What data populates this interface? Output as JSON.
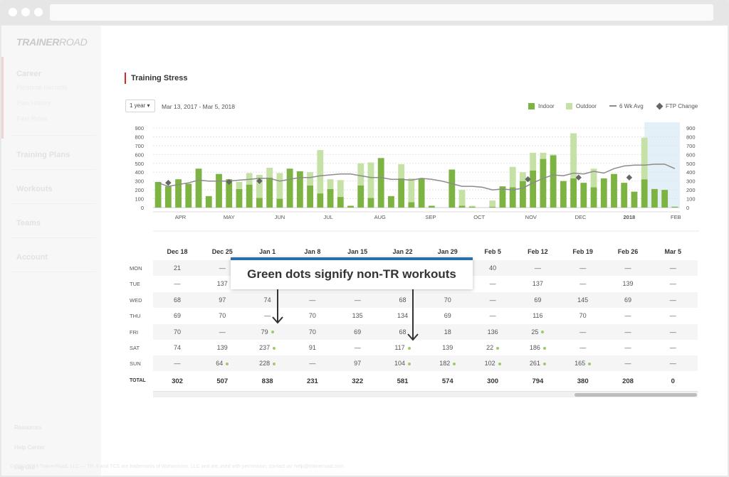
{
  "app": {
    "logo_bold": "TRAINER",
    "logo_light": "ROAD",
    "copyright": "© 2011-2018 TrainerRoad, LLC — TR, if and TCS are trademarks of Wahoo/com, LLC and are used with permission; contact us: help@trainerroad.com"
  },
  "sidebar": {
    "sections": [
      {
        "label": "Career",
        "items": [
          "Personal Records",
          "Plan History",
          "Past Rides"
        ]
      },
      {
        "label": "Training Plans",
        "items": []
      },
      {
        "label": "Workouts",
        "items": []
      },
      {
        "label": "Teams",
        "items": []
      },
      {
        "label": "Account",
        "items": []
      }
    ],
    "footer": [
      "Resources",
      "Help Center",
      "Log Out"
    ]
  },
  "page": {
    "title": "Training Stress",
    "range_select": "1 year",
    "date_range": "Mar 13, 2017 - Mar 5, 2018"
  },
  "legend": {
    "indoor": "Indoor",
    "outdoor": "Outdoor",
    "avg": "6 Wk Avg",
    "ftp": "FTP Change"
  },
  "colors": {
    "indoor": "#7cb342",
    "outdoor": "#c5e1a5",
    "avg_line": "#8c8c8c",
    "ftp_marker": "#666666",
    "highlight": "#e3f0f8",
    "accent": "#d62a2a",
    "tooltip_border": "#2a6fa8",
    "nontr_dot": "#9ccc65"
  },
  "chart_data": {
    "type": "bar",
    "y_ticks": [
      "0",
      "100",
      "200",
      "300",
      "400",
      "500",
      "600",
      "700",
      "800",
      "900"
    ],
    "ylim": [
      0,
      900
    ],
    "x_ticks": [
      "APR",
      "MAY",
      "JUN",
      "JUL",
      "AUG",
      "SEP",
      "OCT",
      "NOV",
      "DEC",
      "2018",
      "FEB"
    ],
    "x_tick_week": [
      2.7,
      7.5,
      12.5,
      17.3,
      22.4,
      27.4,
      32.2,
      37.3,
      42.2,
      47,
      51.6
    ],
    "series": [
      {
        "name": "Indoor",
        "values": [
          290,
          240,
          320,
          270,
          440,
          130,
          380,
          320,
          210,
          260,
          110,
          340,
          100,
          440,
          410,
          250,
          160,
          210,
          120,
          20,
          250,
          110,
          560,
          130,
          330,
          60,
          330,
          20,
          0,
          430,
          20,
          10,
          0,
          10,
          240,
          230,
          300,
          420,
          550,
          590,
          300,
          330,
          280,
          230,
          330,
          380,
          280,
          180,
          320,
          210,
          200,
          10
        ]
      },
      {
        "name": "Outdoor",
        "values": [
          0,
          0,
          0,
          0,
          0,
          0,
          0,
          0,
          80,
          130,
          260,
          110,
          290,
          0,
          0,
          150,
          490,
          110,
          190,
          0,
          250,
          400,
          0,
          0,
          160,
          270,
          0,
          0,
          0,
          0,
          180,
          10,
          0,
          70,
          0,
          230,
          100,
          200,
          70,
          10,
          0,
          510,
          0,
          210,
          0,
          0,
          0,
          0,
          470,
          0,
          0,
          0
        ]
      },
      {
        "name": "6 Wk Avg",
        "values": [
          280,
          240,
          260,
          280,
          310,
          300,
          300,
          300,
          310,
          320,
          330,
          330,
          300,
          320,
          340,
          340,
          360,
          370,
          380,
          380,
          360,
          340,
          340,
          320,
          320,
          310,
          330,
          320,
          300,
          270,
          240,
          240,
          230,
          200,
          210,
          200,
          220,
          280,
          330,
          370,
          360,
          390,
          380,
          410,
          390,
          440,
          470,
          480,
          480,
          490,
          490,
          440
        ]
      }
    ],
    "ftp_change_weeks": [
      1,
      7,
      10,
      36.5,
      41.5,
      46.5
    ],
    "ftp_change_values": [
      280,
      290,
      300,
      320,
      340,
      340
    ],
    "highlight_weeks": [
      48.5,
      62
    ]
  },
  "table": {
    "columns": [
      "Dec 18",
      "Dec 25",
      "Jan 1",
      "Jan 8",
      "Jan 15",
      "Jan 22",
      "Jan 29",
      "Feb 5",
      "Feb 12",
      "Feb 19",
      "Feb 26",
      "Mar 5"
    ],
    "rows": [
      {
        "label": "MON",
        "cells": [
          "21",
          "—",
          "",
          "",
          "",
          "",
          "",
          "40",
          "—",
          "—",
          "—",
          "—"
        ],
        "dots": []
      },
      {
        "label": "TUE",
        "cells": [
          "—",
          "137",
          "",
          "",
          "",
          "",
          "",
          "—",
          "137",
          "—",
          "139",
          "—"
        ],
        "dots": []
      },
      {
        "label": "WED",
        "cells": [
          "68",
          "97",
          "74",
          "—",
          "—",
          "68",
          "70",
          "—",
          "69",
          "145",
          "69",
          "—"
        ],
        "dots": []
      },
      {
        "label": "THU",
        "cells": [
          "69",
          "70",
          "—",
          "70",
          "135",
          "134",
          "69",
          "—",
          "116",
          "70",
          "—",
          "—"
        ],
        "dots": []
      },
      {
        "label": "FRI",
        "cells": [
          "70",
          "—",
          "79",
          "70",
          "69",
          "68",
          "18",
          "136",
          "25",
          "—",
          "—",
          "—"
        ],
        "dots": [
          2,
          8
        ]
      },
      {
        "label": "SAT",
        "cells": [
          "74",
          "139",
          "237",
          "91",
          "—",
          "117",
          "139",
          "22",
          "186",
          "—",
          "—",
          "—"
        ],
        "dots": [
          2,
          5,
          7,
          8
        ]
      },
      {
        "label": "SUN",
        "cells": [
          "—",
          "64",
          "228",
          "—",
          "97",
          "104",
          "182",
          "102",
          "261",
          "165",
          "—",
          "—"
        ],
        "dots": [
          1,
          2,
          5,
          6,
          7,
          8,
          9
        ]
      },
      {
        "label": "TOTAL",
        "cells": [
          "302",
          "507",
          "838",
          "231",
          "322",
          "581",
          "574",
          "300",
          "794",
          "380",
          "208",
          "0"
        ],
        "dots": []
      }
    ]
  },
  "tooltip": {
    "text": "Green dots signify non-TR workouts"
  }
}
